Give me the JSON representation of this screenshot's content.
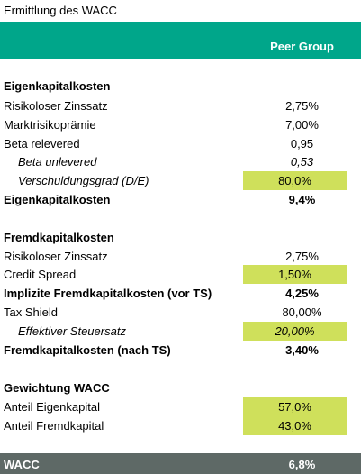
{
  "title": "Ermittlung des WACC",
  "header": {
    "column": "Peer Group"
  },
  "equity": {
    "section": "Eigenkapitalkosten",
    "rows": [
      {
        "label": "Risikoloser Zinssatz",
        "value": "2,75%"
      },
      {
        "label": "Marktrisikoprämie",
        "value": "7,00%"
      },
      {
        "label": "Beta relevered",
        "value": "0,95"
      },
      {
        "label": "Beta unlevered",
        "value": "0,53"
      },
      {
        "label": "Verschuldungsgrad (D/E)",
        "value": "80,0%"
      }
    ],
    "total": {
      "label": "Eigenkapitalkosten",
      "value": "9,4%"
    }
  },
  "debt": {
    "section": "Fremdkapitalkosten",
    "rows": [
      {
        "label": "Risikoloser Zinssatz",
        "value": "2,75%"
      },
      {
        "label": "Credit Spread",
        "value": "1,50%"
      },
      {
        "label": "Implizite Fremdkapitalkosten (vor TS)",
        "value": "4,25%"
      },
      {
        "label": "Tax Shield",
        "value": "80,00%"
      },
      {
        "label": "Effektiver Steuersatz",
        "value": "20,00%"
      }
    ],
    "total": {
      "label": "Fremdkapitalkosten (nach TS)",
      "value": "3,40%"
    }
  },
  "weighting": {
    "section": "Gewichtung WACC",
    "rows": [
      {
        "label": "Anteil Eigenkapital",
        "value": "57,0%"
      },
      {
        "label": "Anteil Fremdkapital",
        "value": "43,0%"
      }
    ]
  },
  "wacc": {
    "label": "WACC",
    "value": "6,8%"
  },
  "colors": {
    "header": "#00a68a",
    "highlight": "#cfe05b",
    "footer": "#5e6966"
  }
}
